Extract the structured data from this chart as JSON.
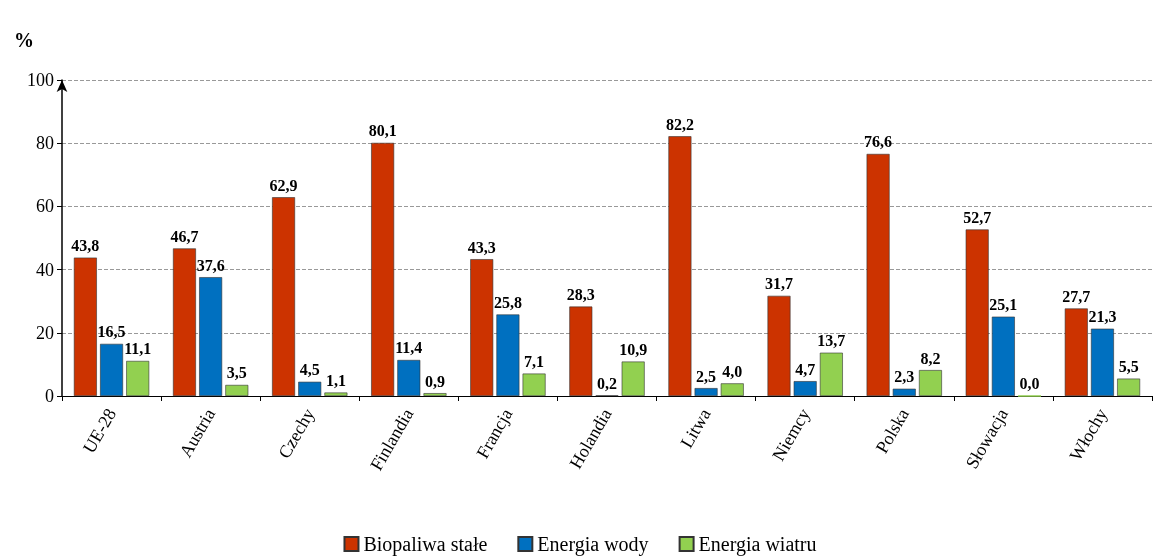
{
  "chart_data": {
    "type": "bar",
    "ylabel": "%",
    "categories": [
      "UE-28",
      "Austria",
      "Czechy",
      "Finlandia",
      "Francja",
      "Holandia",
      "Litwa",
      "Niemcy",
      "Polska",
      "Słowacja",
      "Włochy"
    ],
    "series": [
      {
        "name": "Biopaliwa stałe",
        "color": "#cc3300",
        "values": [
          43.8,
          46.7,
          62.9,
          80.1,
          43.3,
          28.3,
          82.2,
          31.7,
          76.6,
          52.7,
          27.7
        ],
        "value_labels": [
          "43,8",
          "46,7",
          "62,9",
          "80,1",
          "43,3",
          "28,3",
          "82,2",
          "31,7",
          "76,6",
          "52,7",
          "27,7"
        ]
      },
      {
        "name": "Energia wody",
        "color": "#0070c0",
        "values": [
          16.5,
          37.6,
          4.5,
          11.4,
          25.8,
          0.2,
          2.5,
          4.7,
          2.3,
          25.1,
          21.3
        ],
        "value_labels": [
          "16,5",
          "37,6",
          "4,5",
          "11,4",
          "25,8",
          "0,2",
          "2,5",
          "4,7",
          "2,3",
          "25,1",
          "21,3"
        ]
      },
      {
        "name": "Energia wiatru",
        "color": "#92d050",
        "values": [
          11.1,
          3.5,
          1.1,
          0.9,
          7.1,
          10.9,
          4.0,
          13.7,
          8.2,
          0.0,
          5.5
        ],
        "value_labels": [
          "11,1",
          "3,5",
          "1,1",
          "0,9",
          "7,1",
          "10,9",
          "4,0",
          "13,7",
          "8,2",
          "0,0",
          "5,5"
        ]
      }
    ],
    "ylim": [
      0,
      100
    ],
    "yticks": [
      0,
      20,
      40,
      60,
      80,
      100
    ],
    "grid": "y",
    "legend": "bottom"
  }
}
